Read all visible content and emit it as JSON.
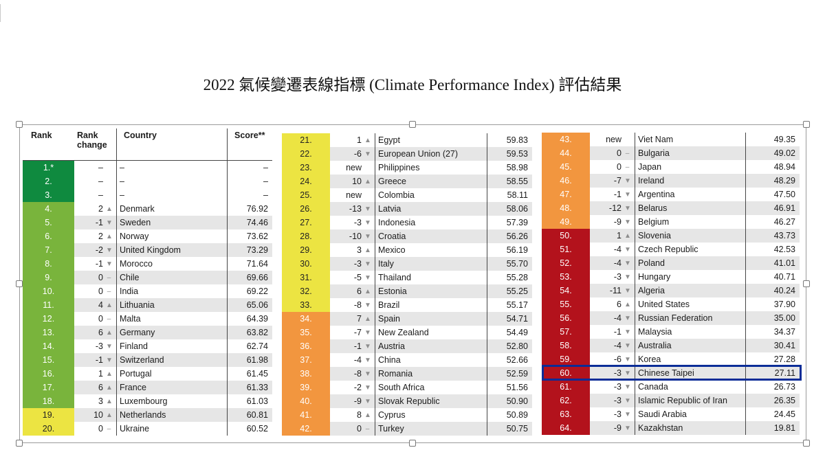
{
  "title": "2022  氣候變遷表線指標  (Climate Performance Index)  評估結果",
  "colors": {
    "dark_green": "#0f8a3f",
    "green": "#79b43c",
    "yellow": "#ece442",
    "orange": "#f2963f",
    "red": "#b3121c",
    "highlight_box": "#0a2c97"
  },
  "headers": {
    "rank": "Rank",
    "rank_change": "Rank change",
    "country": "Country",
    "score": "Score**"
  },
  "rows": [
    {
      "rank": "1.*",
      "change": "–",
      "arrow": "",
      "country": "–",
      "score": "–",
      "color": "dark_green"
    },
    {
      "rank": "2.",
      "change": "–",
      "arrow": "",
      "country": "–",
      "score": "–",
      "color": "dark_green"
    },
    {
      "rank": "3.",
      "change": "–",
      "arrow": "",
      "country": "–",
      "score": "–",
      "color": "dark_green"
    },
    {
      "rank": "4.",
      "change": "2",
      "arrow": "▲",
      "country": "Denmark",
      "score": "76.92",
      "color": "green"
    },
    {
      "rank": "5.",
      "change": "-1",
      "arrow": "▼",
      "country": "Sweden",
      "score": "74.46",
      "color": "green"
    },
    {
      "rank": "6.",
      "change": "2",
      "arrow": "▲",
      "country": "Norway",
      "score": "73.62",
      "color": "green"
    },
    {
      "rank": "7.",
      "change": "-2",
      "arrow": "▼",
      "country": "United Kingdom",
      "score": "73.29",
      "color": "green"
    },
    {
      "rank": "8.",
      "change": "-1",
      "arrow": "▼",
      "country": "Morocco",
      "score": "71.64",
      "color": "green"
    },
    {
      "rank": "9.",
      "change": "0",
      "arrow": "–",
      "country": "Chile",
      "score": "69.66",
      "color": "green"
    },
    {
      "rank": "10.",
      "change": "0",
      "arrow": "–",
      "country": "India",
      "score": "69.22",
      "color": "green"
    },
    {
      "rank": "11.",
      "change": "4",
      "arrow": "▲",
      "country": "Lithuania",
      "score": "65.06",
      "color": "green"
    },
    {
      "rank": "12.",
      "change": "0",
      "arrow": "–",
      "country": "Malta",
      "score": "64.39",
      "color": "green"
    },
    {
      "rank": "13.",
      "change": "6",
      "arrow": "▲",
      "country": "Germany",
      "score": "63.82",
      "color": "green"
    },
    {
      "rank": "14.",
      "change": "-3",
      "arrow": "▼",
      "country": "Finland",
      "score": "62.74",
      "color": "green"
    },
    {
      "rank": "15.",
      "change": "-1",
      "arrow": "▼",
      "country": "Switzerland",
      "score": "61.98",
      "color": "green"
    },
    {
      "rank": "16.",
      "change": "1",
      "arrow": "▲",
      "country": "Portugal",
      "score": "61.45",
      "color": "green"
    },
    {
      "rank": "17.",
      "change": "6",
      "arrow": "▲",
      "country": "France",
      "score": "61.33",
      "color": "green"
    },
    {
      "rank": "18.",
      "change": "3",
      "arrow": "▲",
      "country": "Luxembourg",
      "score": "61.03",
      "color": "green"
    },
    {
      "rank": "19.",
      "change": "10",
      "arrow": "▲",
      "country": "Netherlands",
      "score": "60.81",
      "color": "yellow"
    },
    {
      "rank": "20.",
      "change": "0",
      "arrow": "–",
      "country": "Ukraine",
      "score": "60.52",
      "color": "yellow"
    },
    {
      "rank": "21.",
      "change": "1",
      "arrow": "▲",
      "country": "Egypt",
      "score": "59.83",
      "color": "yellow"
    },
    {
      "rank": "22.",
      "change": "-6",
      "arrow": "▼",
      "country": "European Union (27)",
      "score": "59.53",
      "color": "yellow"
    },
    {
      "rank": "23.",
      "change": "new",
      "arrow": "",
      "country": "Philippines",
      "score": "58.98",
      "color": "yellow"
    },
    {
      "rank": "24.",
      "change": "10",
      "arrow": "▲",
      "country": "Greece",
      "score": "58.55",
      "color": "yellow"
    },
    {
      "rank": "25.",
      "change": "new",
      "arrow": "",
      "country": "Colombia",
      "score": "58.11",
      "color": "yellow"
    },
    {
      "rank": "26.",
      "change": "-13",
      "arrow": "▼",
      "country": "Latvia",
      "score": "58.06",
      "color": "yellow"
    },
    {
      "rank": "27.",
      "change": "-3",
      "arrow": "▼",
      "country": "Indonesia",
      "score": "57.39",
      "color": "yellow"
    },
    {
      "rank": "28.",
      "change": "-10",
      "arrow": "▼",
      "country": "Croatia",
      "score": "56.26",
      "color": "yellow"
    },
    {
      "rank": "29.",
      "change": "3",
      "arrow": "▲",
      "country": "Mexico",
      "score": "56.19",
      "color": "yellow"
    },
    {
      "rank": "30.",
      "change": "-3",
      "arrow": "▼",
      "country": "Italy",
      "score": "55.70",
      "color": "yellow"
    },
    {
      "rank": "31.",
      "change": "-5",
      "arrow": "▼",
      "country": "Thailand",
      "score": "55.28",
      "color": "yellow"
    },
    {
      "rank": "32.",
      "change": "6",
      "arrow": "▲",
      "country": "Estonia",
      "score": "55.25",
      "color": "yellow"
    },
    {
      "rank": "33.",
      "change": "-8",
      "arrow": "▼",
      "country": "Brazil",
      "score": "55.17",
      "color": "yellow"
    },
    {
      "rank": "34.",
      "change": "7",
      "arrow": "▲",
      "country": "Spain",
      "score": "54.71",
      "color": "orange"
    },
    {
      "rank": "35.",
      "change": "-7",
      "arrow": "▼",
      "country": "New Zealand",
      "score": "54.49",
      "color": "orange"
    },
    {
      "rank": "36.",
      "change": "-1",
      "arrow": "▼",
      "country": "Austria",
      "score": "52.80",
      "color": "orange"
    },
    {
      "rank": "37.",
      "change": "-4",
      "arrow": "▼",
      "country": "China",
      "score": "52.66",
      "color": "orange"
    },
    {
      "rank": "38.",
      "change": "-8",
      "arrow": "▼",
      "country": "Romania",
      "score": "52.59",
      "color": "orange"
    },
    {
      "rank": "39.",
      "change": "-2",
      "arrow": "▼",
      "country": "South Africa",
      "score": "51.56",
      "color": "orange"
    },
    {
      "rank": "40.",
      "change": "-9",
      "arrow": "▼",
      "country": "Slovak Republic",
      "score": "50.90",
      "color": "orange"
    },
    {
      "rank": "41.",
      "change": "8",
      "arrow": "▲",
      "country": "Cyprus",
      "score": "50.89",
      "color": "orange"
    },
    {
      "rank": "42.",
      "change": "0",
      "arrow": "–",
      "country": "Turkey",
      "score": "50.75",
      "color": "orange"
    },
    {
      "rank": "43.",
      "change": "new",
      "arrow": "",
      "country": "Viet Nam",
      "score": "49.35",
      "color": "orange"
    },
    {
      "rank": "44.",
      "change": "0",
      "arrow": "–",
      "country": "Bulgaria",
      "score": "49.02",
      "color": "orange"
    },
    {
      "rank": "45.",
      "change": "0",
      "arrow": "–",
      "country": "Japan",
      "score": "48.94",
      "color": "orange"
    },
    {
      "rank": "46.",
      "change": "-7",
      "arrow": "▼",
      "country": "Ireland",
      "score": "48.29",
      "color": "orange"
    },
    {
      "rank": "47.",
      "change": "-1",
      "arrow": "▼",
      "country": "Argentina",
      "score": "47.50",
      "color": "orange"
    },
    {
      "rank": "48.",
      "change": "-12",
      "arrow": "▼",
      "country": "Belarus",
      "score": "46.91",
      "color": "orange"
    },
    {
      "rank": "49.",
      "change": "-9",
      "arrow": "▼",
      "country": "Belgium",
      "score": "46.27",
      "color": "orange"
    },
    {
      "rank": "50.",
      "change": "1",
      "arrow": "▲",
      "country": "Slovenia",
      "score": "43.73",
      "color": "red"
    },
    {
      "rank": "51.",
      "change": "-4",
      "arrow": "▼",
      "country": "Czech Republic",
      "score": "42.53",
      "color": "red"
    },
    {
      "rank": "52.",
      "change": "-4",
      "arrow": "▼",
      "country": "Poland",
      "score": "41.01",
      "color": "red"
    },
    {
      "rank": "53.",
      "change": "-3",
      "arrow": "▼",
      "country": "Hungary",
      "score": "40.71",
      "color": "red"
    },
    {
      "rank": "54.",
      "change": "-11",
      "arrow": "▼",
      "country": "Algeria",
      "score": "40.24",
      "color": "red"
    },
    {
      "rank": "55.",
      "change": "6",
      "arrow": "▲",
      "country": "United States",
      "score": "37.90",
      "color": "red"
    },
    {
      "rank": "56.",
      "change": "-4",
      "arrow": "▼",
      "country": "Russian Federation",
      "score": "35.00",
      "color": "red"
    },
    {
      "rank": "57.",
      "change": "-1",
      "arrow": "▼",
      "country": "Malaysia",
      "score": "34.37",
      "color": "red"
    },
    {
      "rank": "58.",
      "change": "-4",
      "arrow": "▼",
      "country": "Australia",
      "score": "30.41",
      "color": "red"
    },
    {
      "rank": "59.",
      "change": "-6",
      "arrow": "▼",
      "country": "Korea",
      "score": "27.28",
      "color": "red"
    },
    {
      "rank": "60.",
      "change": "-3",
      "arrow": "▼",
      "country": "Chinese Taipei",
      "score": "27.11",
      "color": "red",
      "highlight": true
    },
    {
      "rank": "61.",
      "change": "-3",
      "arrow": "▼",
      "country": "Canada",
      "score": "26.73",
      "color": "red"
    },
    {
      "rank": "62.",
      "change": "-3",
      "arrow": "▼",
      "country": "Islamic Republic of Iran",
      "score": "26.35",
      "color": "red"
    },
    {
      "rank": "63.",
      "change": "-3",
      "arrow": "▼",
      "country": "Saudi Arabia",
      "score": "24.45",
      "color": "red"
    },
    {
      "rank": "64.",
      "change": "-9",
      "arrow": "▼",
      "country": "Kazakhstan",
      "score": "19.81",
      "color": "red"
    }
  ]
}
